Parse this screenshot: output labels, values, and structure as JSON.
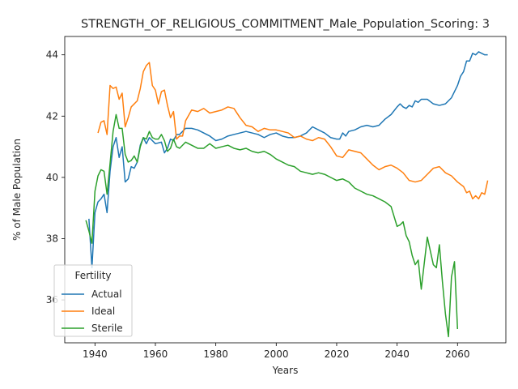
{
  "chart_data": {
    "type": "line",
    "title": "STRENGTH_OF_RELIGIOUS_COMMITMENT_Male_Population_Scoring: 3",
    "xlabel": "Years",
    "ylabel": "% of Male Population",
    "xlim": [
      1930,
      2076
    ],
    "ylim": [
      34.6,
      44.6
    ],
    "xticks": [
      1940,
      1960,
      1980,
      2000,
      2020,
      2040,
      2060
    ],
    "yticks": [
      36,
      38,
      40,
      42,
      44
    ],
    "grid": false,
    "legend": {
      "title": "Fertility",
      "placement": "lower-left"
    },
    "series": [
      {
        "name": "Actual",
        "color": "#1f77b4",
        "x": [
          1938,
          1939,
          1940,
          1941,
          1942,
          1943,
          1944,
          1945,
          1946,
          1947,
          1948,
          1949,
          1950,
          1951,
          1952,
          1953,
          1954,
          1955,
          1956,
          1957,
          1958,
          1960,
          1962,
          1963,
          1964,
          1965,
          1966,
          1967,
          1968,
          1970,
          1972,
          1974,
          1976,
          1978,
          1980,
          1982,
          1984,
          1986,
          1988,
          1990,
          1992,
          1994,
          1996,
          1998,
          2000,
          2002,
          2004,
          2006,
          2008,
          2010,
          2012,
          2014,
          2016,
          2018,
          2020,
          2021,
          2022,
          2023,
          2024,
          2026,
          2028,
          2030,
          2032,
          2034,
          2036,
          2038,
          2040,
          2041,
          2042,
          2043,
          2044,
          2045,
          2046,
          2047,
          2048,
          2050,
          2052,
          2054,
          2056,
          2058,
          2060,
          2061,
          2062,
          2063,
          2064,
          2065,
          2066,
          2067,
          2068,
          2069,
          2070
        ],
        "y": [
          38.65,
          37.05,
          38.85,
          39.2,
          39.3,
          39.45,
          38.85,
          40.2,
          41.0,
          41.3,
          40.65,
          41.0,
          39.85,
          39.95,
          40.35,
          40.3,
          40.5,
          41.05,
          41.3,
          41.1,
          41.3,
          41.1,
          41.15,
          40.8,
          40.95,
          41.25,
          41.2,
          41.4,
          41.4,
          41.6,
          41.6,
          41.55,
          41.45,
          41.35,
          41.2,
          41.25,
          41.35,
          41.4,
          41.45,
          41.5,
          41.45,
          41.4,
          41.3,
          41.4,
          41.45,
          41.35,
          41.3,
          41.3,
          41.35,
          41.45,
          41.65,
          41.55,
          41.45,
          41.3,
          41.25,
          41.25,
          41.45,
          41.35,
          41.5,
          41.55,
          41.65,
          41.7,
          41.65,
          41.7,
          41.9,
          42.05,
          42.3,
          42.4,
          42.3,
          42.25,
          42.35,
          42.3,
          42.5,
          42.45,
          42.55,
          42.55,
          42.4,
          42.35,
          42.4,
          42.6,
          43.0,
          43.3,
          43.45,
          43.8,
          43.8,
          44.05,
          44.0,
          44.1,
          44.05,
          44.0,
          44.0
        ]
      },
      {
        "name": "Ideal",
        "color": "#ff7f0e",
        "x": [
          1941,
          1942,
          1943,
          1944,
          1945,
          1946,
          1947,
          1948,
          1949,
          1950,
          1951,
          1952,
          1953,
          1954,
          1955,
          1956,
          1957,
          1958,
          1959,
          1960,
          1961,
          1962,
          1963,
          1964,
          1965,
          1966,
          1967,
          1968,
          1969,
          1970,
          1972,
          1974,
          1976,
          1978,
          1980,
          1982,
          1984,
          1986,
          1988,
          1990,
          1992,
          1994,
          1996,
          1998,
          2000,
          2002,
          2004,
          2006,
          2008,
          2010,
          2012,
          2014,
          2016,
          2018,
          2020,
          2022,
          2024,
          2026,
          2028,
          2030,
          2032,
          2034,
          2036,
          2038,
          2040,
          2042,
          2044,
          2046,
          2048,
          2050,
          2052,
          2054,
          2056,
          2058,
          2060,
          2062,
          2063,
          2064,
          2065,
          2066,
          2067,
          2068,
          2069,
          2070
        ],
        "y": [
          41.45,
          41.8,
          41.85,
          41.4,
          43.0,
          42.9,
          42.95,
          42.55,
          42.75,
          41.65,
          41.95,
          42.3,
          42.4,
          42.5,
          42.9,
          43.45,
          43.65,
          43.75,
          43.0,
          42.85,
          42.4,
          42.8,
          42.85,
          42.35,
          41.95,
          42.15,
          41.25,
          41.35,
          41.35,
          41.85,
          42.2,
          42.15,
          42.25,
          42.1,
          42.15,
          42.2,
          42.3,
          42.25,
          41.95,
          41.7,
          41.65,
          41.5,
          41.6,
          41.55,
          41.55,
          41.5,
          41.45,
          41.3,
          41.35,
          41.25,
          41.2,
          41.3,
          41.25,
          41.0,
          40.7,
          40.65,
          40.9,
          40.85,
          40.8,
          40.6,
          40.4,
          40.25,
          40.35,
          40.4,
          40.3,
          40.15,
          39.9,
          39.85,
          39.9,
          40.1,
          40.3,
          40.35,
          40.15,
          40.05,
          39.85,
          39.7,
          39.5,
          39.55,
          39.3,
          39.4,
          39.3,
          39.5,
          39.45,
          39.9
        ]
      },
      {
        "name": "Sterile",
        "color": "#2ca02c",
        "x": [
          1937,
          1938,
          1939,
          1940,
          1941,
          1942,
          1943,
          1944,
          1945,
          1946,
          1947,
          1948,
          1949,
          1950,
          1951,
          1952,
          1953,
          1954,
          1955,
          1956,
          1957,
          1958,
          1959,
          1960,
          1961,
          1962,
          1963,
          1964,
          1965,
          1966,
          1967,
          1968,
          1970,
          1972,
          1974,
          1976,
          1978,
          1980,
          1982,
          1984,
          1986,
          1988,
          1990,
          1992,
          1994,
          1996,
          1998,
          2000,
          2002,
          2004,
          2006,
          2008,
          2010,
          2012,
          2014,
          2016,
          2018,
          2020,
          2022,
          2024,
          2026,
          2028,
          2030,
          2032,
          2034,
          2036,
          2038,
          2040,
          2041,
          2042,
          2043,
          2044,
          2045,
          2046,
          2047,
          2048,
          2049,
          2050,
          2051,
          2052,
          2053,
          2054,
          2055,
          2056,
          2057,
          2058,
          2059,
          2060
        ],
        "y": [
          38.6,
          38.25,
          37.85,
          39.55,
          40.05,
          40.25,
          40.2,
          39.45,
          40.45,
          41.5,
          42.05,
          41.6,
          41.6,
          40.75,
          40.5,
          40.55,
          40.7,
          40.5,
          41.0,
          41.3,
          41.25,
          41.5,
          41.3,
          41.25,
          41.25,
          41.4,
          41.2,
          40.85,
          40.95,
          41.25,
          41.0,
          40.95,
          41.15,
          41.05,
          40.95,
          40.95,
          41.1,
          40.95,
          41.0,
          41.05,
          40.95,
          40.9,
          40.95,
          40.85,
          40.8,
          40.85,
          40.75,
          40.6,
          40.5,
          40.4,
          40.35,
          40.2,
          40.15,
          40.1,
          40.15,
          40.1,
          40.0,
          39.9,
          39.95,
          39.85,
          39.65,
          39.55,
          39.45,
          39.4,
          39.3,
          39.2,
          39.05,
          38.4,
          38.45,
          38.55,
          38.1,
          37.9,
          37.45,
          37.15,
          37.3,
          36.35,
          37.2,
          38.05,
          37.6,
          37.15,
          37.05,
          37.8,
          36.6,
          35.55,
          34.8,
          36.75,
          37.25,
          35.05
        ]
      }
    ]
  }
}
